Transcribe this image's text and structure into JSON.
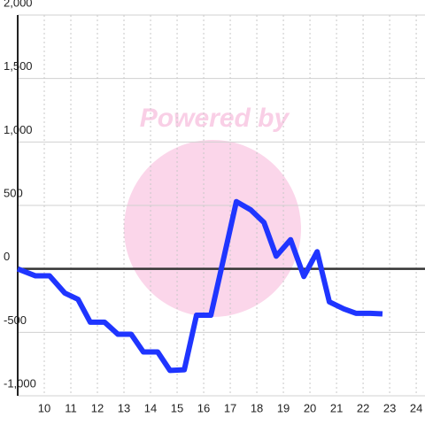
{
  "chart_data": {
    "type": "line",
    "watermark": "Powered by",
    "x": [
      9,
      9.67,
      10.2,
      10.77,
      11.27,
      11.73,
      12.27,
      12.77,
      13.27,
      13.73,
      14.27,
      14.73,
      15.27,
      15.73,
      16.27,
      16.77,
      17.23,
      17.77,
      18.27,
      18.73,
      19.27,
      19.77,
      20.27,
      20.73,
      21.27,
      21.73,
      22.27,
      22.73
    ],
    "series": [
      {
        "color": "#1f35ff",
        "values": [
          0,
          -55,
          -55,
          -190,
          -240,
          -420,
          -420,
          -515,
          -515,
          -655,
          -655,
          -800,
          -795,
          -365,
          -365,
          100,
          530,
          465,
          365,
          100,
          230,
          -60,
          135,
          -260,
          -315,
          -350,
          -350,
          -355
        ]
      }
    ],
    "xlim": [
      9,
      24.33
    ],
    "xticks": [
      10,
      11,
      12,
      13,
      14,
      15,
      16,
      17,
      18,
      19,
      20,
      21,
      22,
      23,
      24
    ],
    "ylim": [
      -1000,
      2000
    ],
    "yticks": [
      {
        "value": -1000,
        "label": "-1,000"
      },
      -500,
      0,
      500,
      {
        "value": 1000,
        "label": "1,000"
      },
      {
        "value": 1500,
        "label": "1,500"
      },
      {
        "value": 2000,
        "label": "2,000"
      }
    ],
    "grid": true
  }
}
